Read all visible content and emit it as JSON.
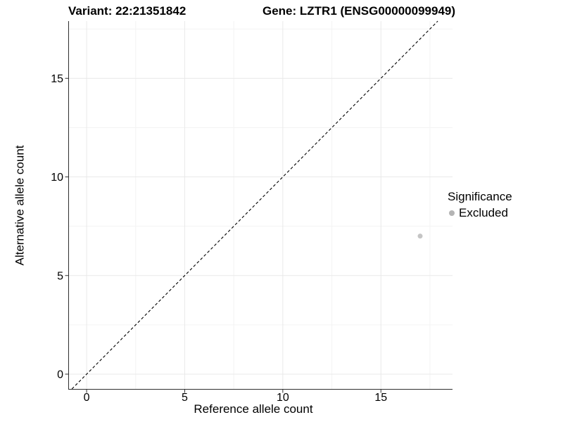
{
  "chart_data": {
    "type": "scatter",
    "title_left": "Variant: 22:21351842",
    "title_right": "Gene: LZTR1 (ENSG00000099949)",
    "xlabel": "Reference allele count",
    "ylabel": "Alternative allele count",
    "xlim": [
      -0.9,
      18.65
    ],
    "ylim": [
      -0.75,
      17.9
    ],
    "xticks": [
      0,
      5,
      10,
      15
    ],
    "yticks": [
      0,
      5,
      10,
      15
    ],
    "x_minor": [
      2.5,
      7.5,
      12.5,
      17.5
    ],
    "y_minor": [
      2.5,
      7.5,
      12.5,
      17.5
    ],
    "grid": "on",
    "identity_line": {
      "style": "dashed",
      "color": "#000000",
      "equation": "y = x"
    },
    "series": [
      {
        "name": "Excluded",
        "color": "#c5c5c5",
        "points": [
          {
            "x": 17,
            "y": 7
          }
        ],
        "point_radius": 3.5
      }
    ],
    "legend": {
      "title": "Significance",
      "position": "right",
      "items": [
        {
          "label": "Excluded",
          "color": "#b4b4b4"
        }
      ]
    },
    "colors": {
      "background": "#ffffff",
      "axis_line": "#2f2f2f",
      "grid_major": "#e9e9e9",
      "grid_minor": "#f3f3f3",
      "text": "#000000"
    }
  }
}
